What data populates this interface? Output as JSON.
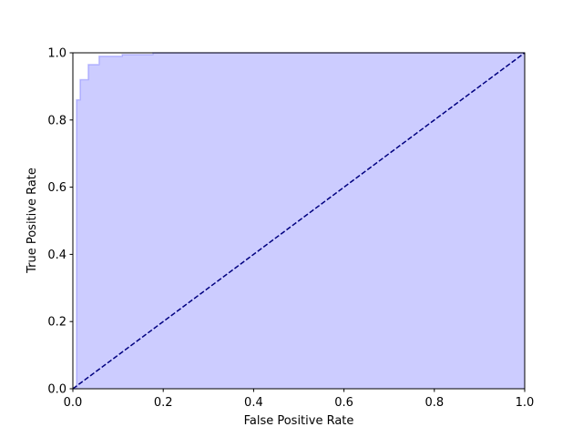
{
  "chart_data": {
    "type": "line",
    "xlabel": "False Positive Rate",
    "ylabel": "True Positive Rate",
    "xlim": [
      0,
      1
    ],
    "ylim": [
      0,
      1
    ],
    "xticks": [
      {
        "value": 0,
        "label": "0.0"
      },
      0.2,
      0.4,
      0.6,
      0.8,
      {
        "value": 1,
        "label": "1.0"
      }
    ],
    "yticks": [
      {
        "value": 0,
        "label": "0.0"
      },
      0.2,
      0.4,
      0.6,
      0.8,
      {
        "value": 1,
        "label": "1.0"
      }
    ],
    "series": [
      {
        "color": "#0000ff",
        "alpha": 0.2,
        "fill": true,
        "linestyle": "solid",
        "x": [
          0,
          0.008,
          0.008,
          0.016,
          0.016,
          0.034,
          0.034,
          0.058,
          0.058,
          0.109,
          0.109,
          0.177,
          0.177,
          1
        ],
        "values": [
          0,
          0,
          0.86,
          0.86,
          0.92,
          0.92,
          0.965,
          0.965,
          0.99,
          0.99,
          0.995,
          0.995,
          1,
          1
        ]
      },
      {
        "color": "#000080",
        "alpha": 1,
        "fill": false,
        "linestyle": "dashed",
        "x": [
          0,
          1
        ],
        "values": [
          0,
          1
        ]
      }
    ]
  }
}
